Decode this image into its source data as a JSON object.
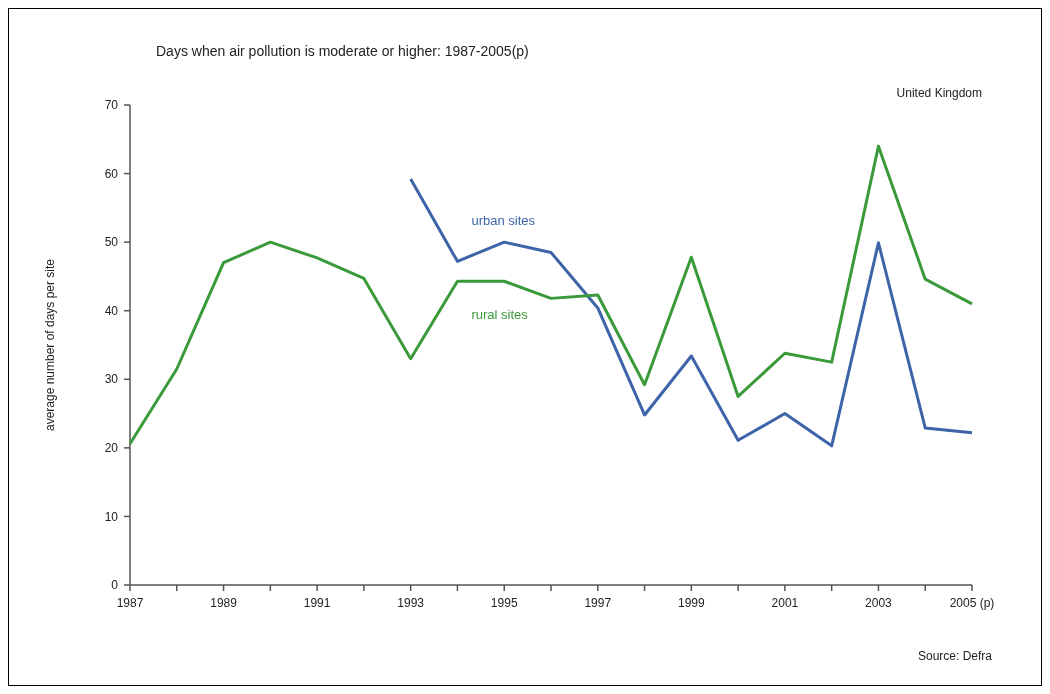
{
  "chart_data": {
    "type": "line",
    "title": "Days when air pollution is moderate or higher: 1987-2005(p)",
    "ylabel": "average number of days per site",
    "categories": [
      "1987",
      null,
      "1989",
      null,
      "1991",
      null,
      "1993",
      null,
      "1995",
      null,
      "1997",
      null,
      "1999",
      null,
      "2001",
      null,
      "2003",
      null,
      "2005 (p)"
    ],
    "series": [
      {
        "name": "urban sites",
        "color": "#3d63a8",
        "values": [
          null,
          null,
          null,
          null,
          null,
          null,
          59.2,
          47.2,
          50,
          48.5,
          40.4,
          24.8,
          33.4,
          21.1,
          25,
          20.3,
          49.9,
          22.9,
          22.2
        ]
      },
      {
        "name": "rural sites",
        "color": "#3a9a3a",
        "values": [
          20.6,
          31.5,
          47,
          50,
          47.7,
          44.7,
          33,
          44.3,
          44.3,
          41.8,
          42.3,
          29.2,
          47.8,
          27.5,
          33.8,
          32.5,
          64,
          44.6,
          41
        ]
      }
    ],
    "ylim": [
      0,
      70
    ],
    "yticks": [
      0,
      10,
      20,
      30,
      40,
      50,
      60,
      70
    ],
    "grid": false,
    "marker": "none",
    "line_style": "solid",
    "annotations": [
      "United Kingdom",
      "Source: Defra"
    ]
  }
}
